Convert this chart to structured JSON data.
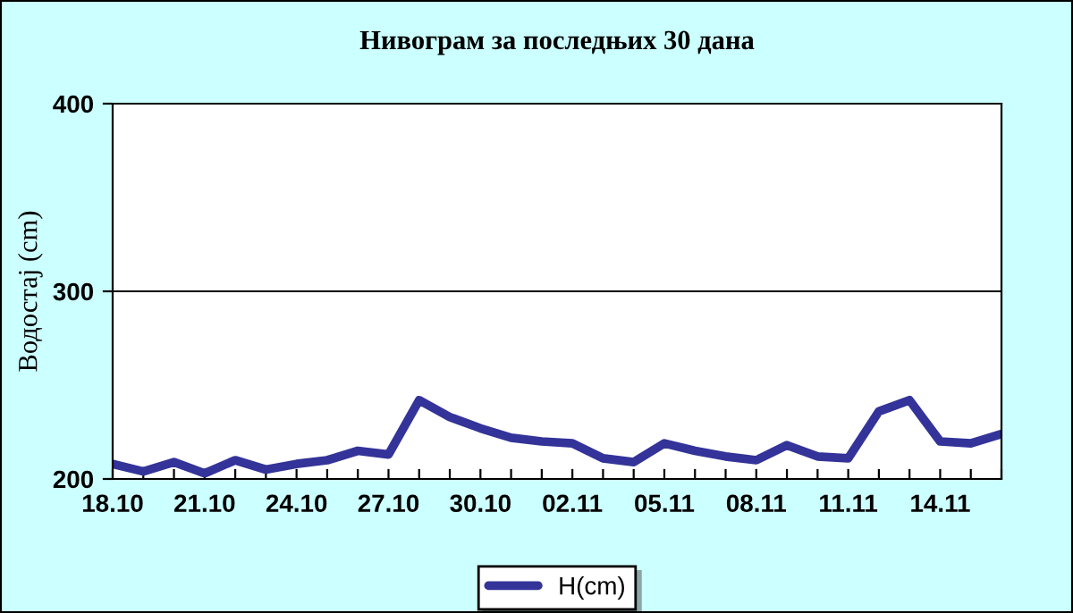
{
  "chart_data": {
    "type": "line",
    "title": "Нивограм за последњих 30 дана",
    "ylabel": "Водостај (cm)",
    "categories": [
      "18.10",
      null,
      null,
      "21.10",
      null,
      null,
      "24.10",
      null,
      null,
      "27.10",
      null,
      null,
      "30.10",
      null,
      null,
      "02.11",
      null,
      null,
      "05.11",
      null,
      null,
      "08.11",
      null,
      null,
      "11.11",
      null,
      null,
      "14.11",
      null,
      null
    ],
    "series": [
      {
        "name": "H(cm)",
        "color": "#333399",
        "values": [
          208,
          204,
          209,
          203,
          210,
          205,
          208,
          210,
          215,
          213,
          242,
          233,
          227,
          222,
          220,
          219,
          211,
          209,
          219,
          215,
          212,
          210,
          218,
          212,
          211,
          236,
          242,
          220,
          219,
          224
        ]
      }
    ],
    "ylim": [
      200,
      400
    ],
    "yticks": [
      200,
      300,
      400
    ],
    "grid": "y",
    "legend": "bottom",
    "marker": "none",
    "line_style": "solid"
  }
}
